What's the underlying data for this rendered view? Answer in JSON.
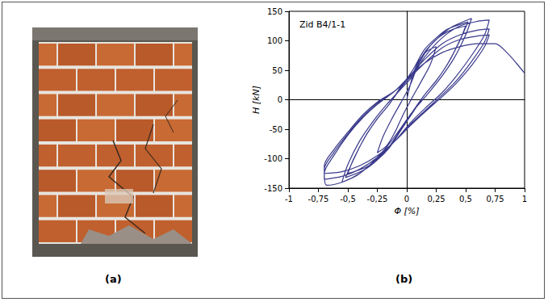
{
  "panel_labels": [
    "(a)",
    "(b)"
  ],
  "chart_data": {
    "type": "line",
    "title": "Zid B4/1-1",
    "xlabel": "Φ [%]",
    "ylabel": "H [kN]",
    "color": "#3a3a8c",
    "grid": false,
    "xlim": [
      -1,
      1
    ],
    "ylim": [
      -150,
      150
    ],
    "xticks": [
      -1,
      {
        "value": -0.75,
        "label": "-0,75"
      },
      {
        "value": -0.5,
        "label": "-0,5"
      },
      {
        "value": -0.25,
        "label": "-0,25"
      },
      0,
      {
        "value": 0.25,
        "label": "0,25"
      },
      {
        "value": 0.5,
        "label": "0,5"
      },
      {
        "value": 0.75,
        "label": "0,75"
      },
      1
    ],
    "yticks": [
      -150,
      -100,
      -50,
      0,
      50,
      100,
      150
    ],
    "x": [
      0,
      0.05,
      0.1,
      0.17,
      0.25,
      0.2,
      0.12,
      0.05,
      -0.03,
      -0.1,
      -0.17,
      -0.25,
      -0.2,
      -0.12,
      -0.05,
      0.03,
      0.1,
      0.2,
      0.3,
      0.4,
      0.5,
      0.45,
      0.35,
      0.25,
      0.15,
      0.05,
      -0.05,
      -0.15,
      -0.25,
      -0.35,
      -0.5,
      -0.45,
      -0.35,
      -0.25,
      -0.15,
      -0.05,
      0.05,
      0.15,
      0.25,
      0.35,
      0.52,
      0.46,
      0.36,
      0.26,
      0.15,
      0.05,
      -0.05,
      -0.15,
      -0.25,
      -0.37,
      -0.52,
      -0.46,
      -0.36,
      -0.26,
      -0.15,
      -0.05,
      0.05,
      0.15,
      0.25,
      0.37,
      0.55,
      0.5,
      0.4,
      0.28,
      0.17,
      0.05,
      -0.05,
      -0.17,
      -0.3,
      -0.42,
      -0.55,
      -0.5,
      -0.4,
      -0.28,
      -0.17,
      -0.05,
      0.05,
      0.15,
      0.3,
      0.45,
      0.6,
      0.7,
      0.66,
      0.55,
      0.42,
      0.3,
      0.18,
      0.05,
      -0.1,
      -0.25,
      -0.4,
      -0.55,
      -0.68,
      -0.7,
      -0.62,
      -0.5,
      -0.37,
      -0.25,
      -0.1,
      0,
      0.15,
      0.3,
      0.45,
      0.6,
      0.7,
      0.66,
      0.55,
      0.42,
      0.3,
      0.18,
      0.05,
      -0.1,
      -0.25,
      -0.4,
      -0.55,
      -0.7,
      -0.7,
      -0.62,
      -0.5,
      -0.37,
      -0.25,
      -0.1,
      0,
      0.15,
      0.3,
      0.45,
      0.6,
      0.7,
      0.66,
      0.55,
      0.42,
      0.3,
      0.18,
      0.05,
      -0.1,
      -0.25,
      -0.4,
      -0.55,
      -0.7,
      -0.7,
      -0.62,
      -0.5,
      -0.37,
      -0.25,
      -0.1,
      0,
      0.15,
      0.3,
      0.45,
      0.6,
      0.75,
      0.85,
      0.93,
      1
    ],
    "values": [
      0,
      40,
      65,
      82,
      90,
      60,
      30,
      5,
      -25,
      -55,
      -78,
      -90,
      -62,
      -30,
      -5,
      25,
      60,
      92,
      110,
      120,
      125,
      100,
      62,
      32,
      8,
      -22,
      -52,
      -82,
      -102,
      -115,
      -125,
      -100,
      -62,
      -32,
      -8,
      22,
      50,
      85,
      105,
      120,
      132,
      105,
      65,
      35,
      8,
      -20,
      -50,
      -80,
      -102,
      -120,
      -132,
      -105,
      -65,
      -35,
      -8,
      20,
      45,
      80,
      102,
      122,
      138,
      110,
      70,
      35,
      8,
      -20,
      -48,
      -80,
      -108,
      -128,
      -140,
      -110,
      -70,
      -35,
      -8,
      18,
      40,
      72,
      105,
      125,
      133,
      135,
      110,
      75,
      40,
      12,
      -10,
      -35,
      -70,
      -100,
      -125,
      -140,
      -145,
      -125,
      -95,
      -60,
      -30,
      -8,
      15,
      35,
      68,
      95,
      110,
      118,
      120,
      98,
      65,
      32,
      8,
      -14,
      -38,
      -70,
      -98,
      -118,
      -130,
      -135,
      -118,
      -90,
      -58,
      -28,
      -6,
      15,
      32,
      62,
      88,
      102,
      108,
      110,
      90,
      58,
      28,
      5,
      -16,
      -40,
      -70,
      -95,
      -112,
      -122,
      -125,
      -112,
      -85,
      -55,
      -25,
      -4,
      15,
      35,
      62,
      80,
      90,
      95,
      95,
      80,
      62,
      45
    ]
  }
}
